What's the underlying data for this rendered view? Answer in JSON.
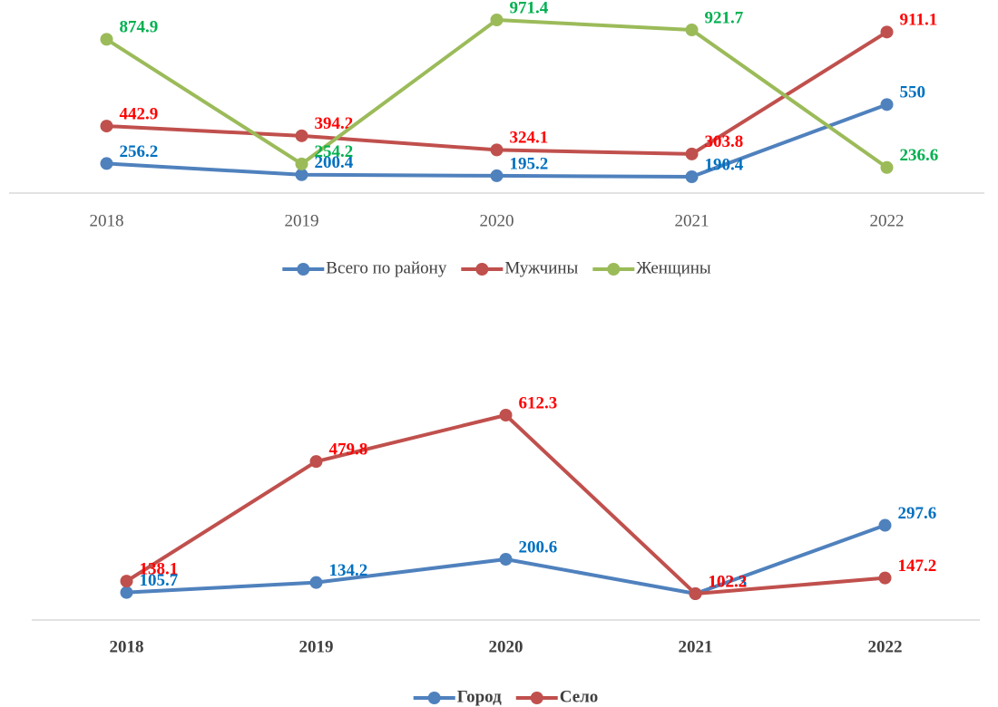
{
  "chart_data": [
    {
      "type": "line",
      "categories": [
        "2018",
        "2019",
        "2020",
        "2021",
        "2022"
      ],
      "series": [
        {
          "name": "Всего по району",
          "color": "#4f81bd",
          "label_color": "#0070c0",
          "values": [
            256.2,
            200.4,
            195.2,
            190.4,
            550
          ]
        },
        {
          "name": "Мужчины",
          "color": "#c0504d",
          "label_color": "#ff0000",
          "values": [
            442.9,
            394.2,
            324.1,
            303.8,
            911.1
          ]
        },
        {
          "name": "Женщины",
          "color": "#9bbb59",
          "label_color": "#00b050",
          "values": [
            874.9,
            254.2,
            971.4,
            921.7,
            236.6
          ]
        }
      ],
      "legend": "bottom"
    },
    {
      "type": "line",
      "categories": [
        "2018",
        "2019",
        "2020",
        "2021",
        "2022"
      ],
      "series": [
        {
          "name": "Город",
          "color": "#4f81bd",
          "label_color": "#0070c0",
          "values": [
            105.7,
            134.2,
            200.6,
            102.3,
            297.6
          ]
        },
        {
          "name": "Село",
          "color": "#c0504d",
          "label_color": "#ff0000",
          "values": [
            138.1,
            479.8,
            612.3,
            102.2,
            147.2
          ]
        }
      ],
      "legend": "bottom"
    }
  ]
}
